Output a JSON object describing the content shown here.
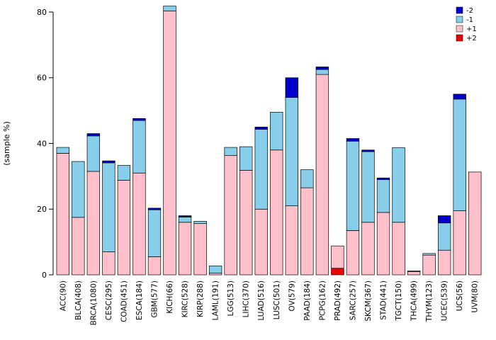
{
  "chart_data": {
    "type": "bar",
    "stacked": true,
    "title": "",
    "xlabel": "",
    "ylabel": "(sample %)",
    "ylim": [
      0,
      80
    ],
    "yticks": [
      0,
      20,
      40,
      60,
      80
    ],
    "grid": false,
    "bar_border_color": "#000000",
    "stack_order": "bottom to top: +2, +1, -1, -2",
    "categories": [
      "ACC(90)",
      "BLCA(408)",
      "BRCA(1080)",
      "CESC(295)",
      "COAD(451)",
      "ESCA(184)",
      "GBM(577)",
      "KICH(66)",
      "KIRC(528)",
      "KIRP(288)",
      "LAML(191)",
      "LGG(513)",
      "LIHC(370)",
      "LUAD(516)",
      "LUSC(501)",
      "OV(579)",
      "PAAD(184)",
      "PCPG(162)",
      "PRAD(492)",
      "SARC(257)",
      "SKCM(367)",
      "STAD(441)",
      "TGCT(150)",
      "THCA(499)",
      "THYM(123)",
      "UCEC(539)",
      "UCS(56)",
      "UVM(80)"
    ],
    "series": [
      {
        "name": "+2",
        "color": "#EE0000",
        "values": [
          0,
          0,
          0,
          0,
          0,
          0,
          0,
          0,
          0,
          0,
          0,
          0,
          0,
          0,
          0,
          0,
          0,
          0,
          2,
          0,
          0,
          0,
          0,
          0,
          0,
          0,
          0,
          0
        ]
      },
      {
        "name": "+1",
        "color": "#FFC0CB",
        "values": [
          37,
          17.5,
          31.5,
          7,
          28.8,
          31,
          5.5,
          80.3,
          16,
          15.6,
          0.5,
          36.3,
          31.8,
          20,
          38,
          21,
          26.5,
          61,
          6.8,
          13.5,
          16,
          19,
          16,
          1,
          6,
          7.5,
          19.5,
          31.3
        ]
      },
      {
        "name": "-1",
        "color": "#87CEEB",
        "values": [
          1.8,
          17,
          10.8,
          27.1,
          4.5,
          16,
          14.3,
          1.5,
          1.6,
          0.7,
          2.2,
          2.5,
          7.2,
          24.3,
          11.5,
          33,
          5.5,
          1.5,
          0,
          27.2,
          21.5,
          10,
          22.7,
          0.2,
          0.5,
          8.3,
          34,
          0
        ]
      },
      {
        "name": "-2",
        "color": "#0000CD",
        "values": [
          0,
          0,
          0.7,
          0.6,
          0,
          0.6,
          0.5,
          0,
          0.4,
          0,
          0,
          0,
          0,
          0.7,
          0,
          6,
          0,
          0.8,
          0,
          0.8,
          0.5,
          0.5,
          0,
          0,
          0,
          2.2,
          1.5,
          0
        ]
      }
    ],
    "legend": {
      "position": "top-right",
      "entries": [
        {
          "label": "-2",
          "color": "#0000CD"
        },
        {
          "label": "-1",
          "color": "#87CEEB"
        },
        {
          "label": "+1",
          "color": "#FFC0CB"
        },
        {
          "label": "+2",
          "color": "#EE0000"
        }
      ]
    }
  }
}
